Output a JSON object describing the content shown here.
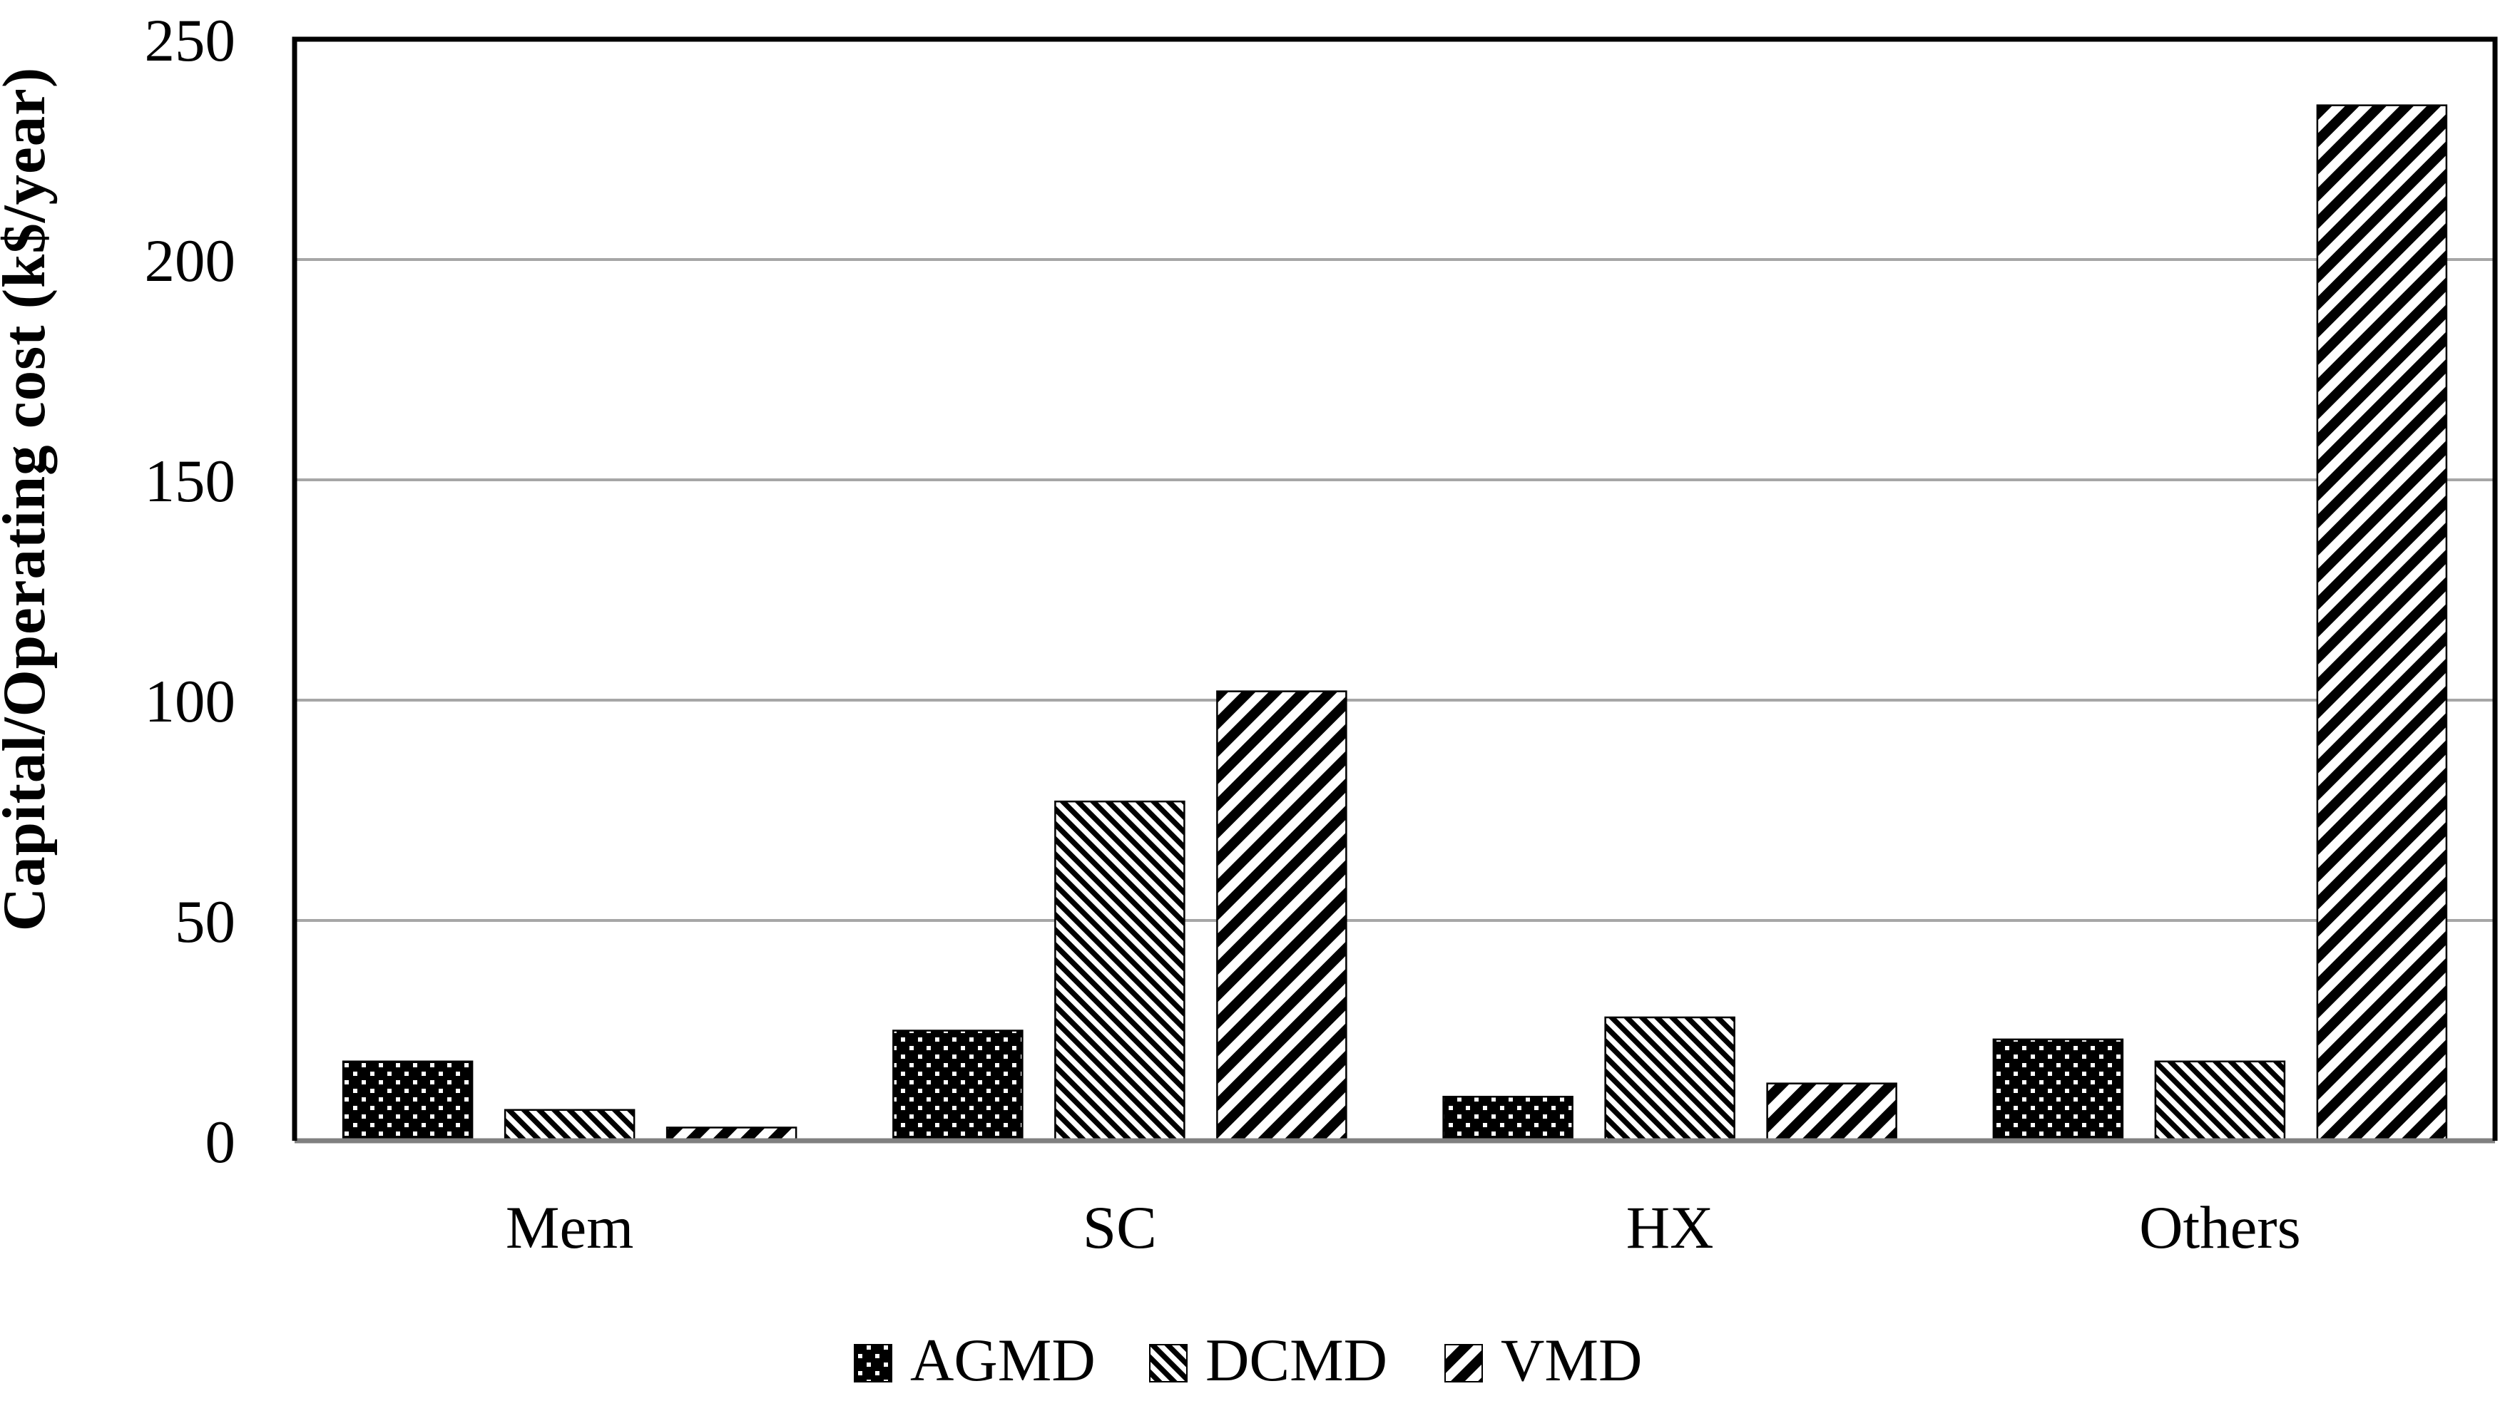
{
  "chart_data": {
    "type": "bar",
    "title": "",
    "ylabel": "Capital/Operating cost (k$/year)",
    "xlabel": "",
    "ylim": [
      0,
      250
    ],
    "yticks": [
      0,
      50,
      100,
      150,
      200,
      250
    ],
    "grid": "horizontal",
    "legend_position": "bottom",
    "categories": [
      "Mem",
      "SC",
      "HX",
      "Others"
    ],
    "series": [
      {
        "name": "AGMD",
        "pattern": "dots-white-on-black",
        "values": [
          18,
          25,
          10,
          23
        ]
      },
      {
        "name": "DCMD",
        "pattern": "thin-backslash-stripes",
        "values": [
          7,
          77,
          28,
          18
        ]
      },
      {
        "name": "VMD",
        "pattern": "thick-slash-stripes",
        "values": [
          3,
          102,
          13,
          235
        ]
      }
    ],
    "colors": {
      "bar_black": "#000000",
      "pattern_white": "#ffffff",
      "gridline": "#a6a6a6",
      "baseline": "#808080",
      "plot_border": "#000000",
      "text": "#000000",
      "background": "#ffffff"
    }
  }
}
